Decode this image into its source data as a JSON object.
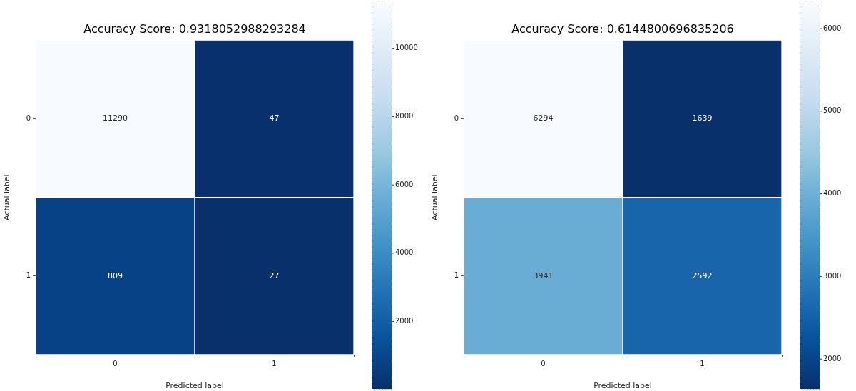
{
  "chart_data": [
    {
      "type": "heatmap",
      "title": "Accuracy Score: 0.9318052988293284",
      "xlabel": "Predicted label",
      "ylabel": "Actual label",
      "categories": [
        "0",
        "1"
      ],
      "y_categories": [
        "0",
        "1"
      ],
      "cells": [
        [
          11290,
          47
        ],
        [
          809,
          27
        ]
      ],
      "data_labels": true,
      "clim": [
        27,
        11290
      ],
      "cticks": [
        2000,
        4000,
        6000,
        8000,
        10000
      ]
    },
    {
      "type": "heatmap",
      "title": "Accuracy Score: 0.6144800696835206",
      "xlabel": "Predicted label",
      "ylabel": "Actual label",
      "categories": [
        "0",
        "1"
      ],
      "y_categories": [
        "0",
        "1"
      ],
      "cells": [
        [
          6294,
          1639
        ],
        [
          3941,
          2592
        ]
      ],
      "data_labels": true,
      "clim": [
        1639,
        6294
      ],
      "cticks": [
        2000,
        3000,
        4000,
        5000,
        6000
      ]
    }
  ]
}
